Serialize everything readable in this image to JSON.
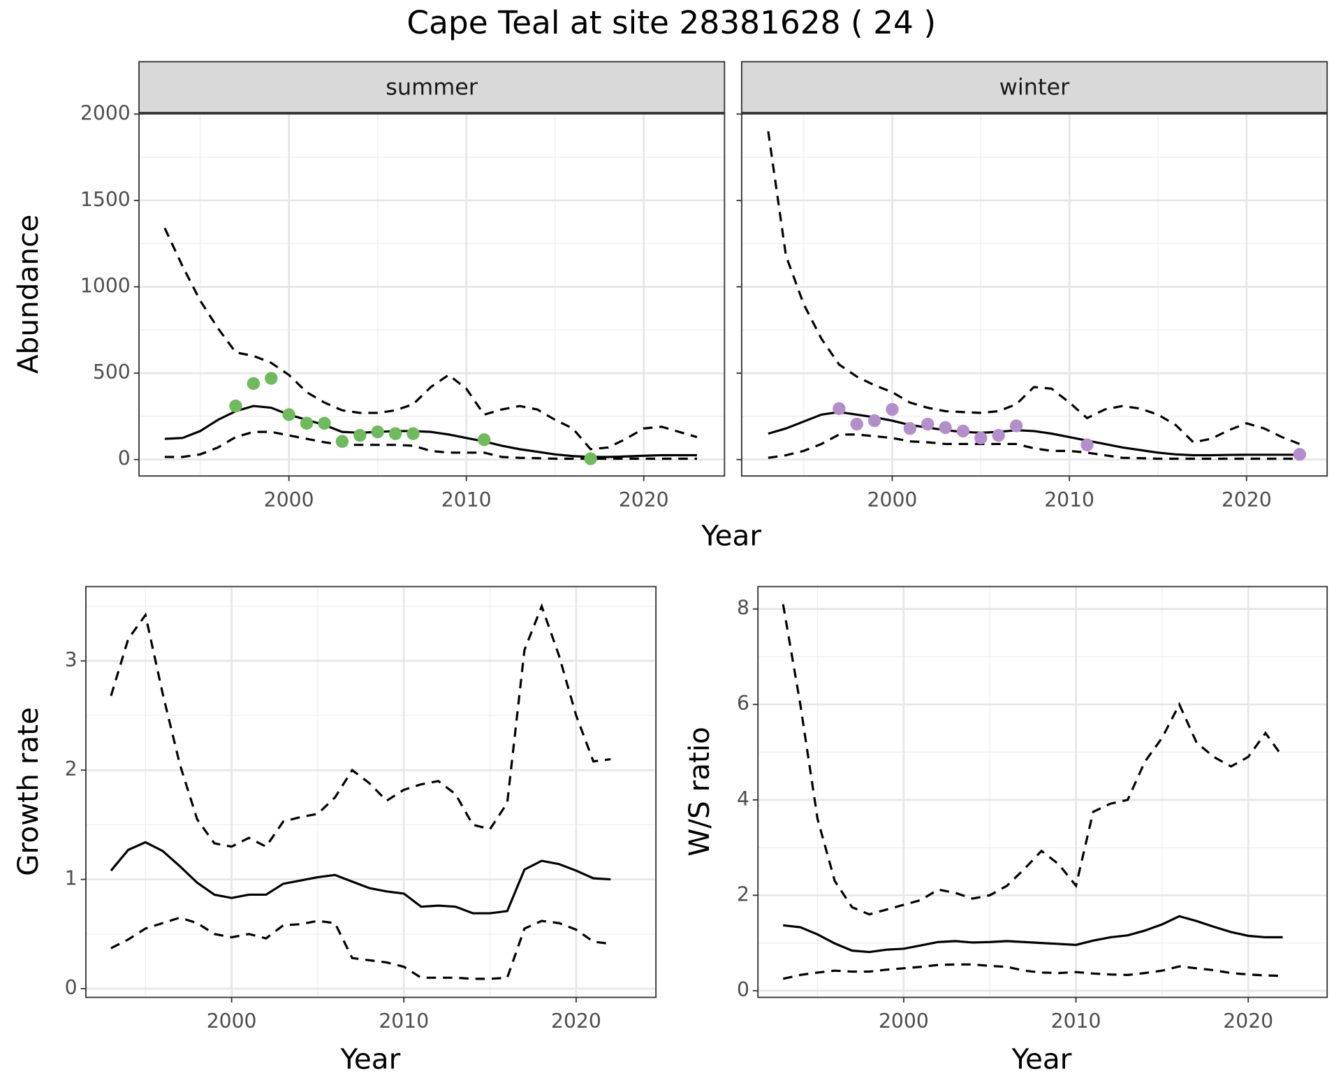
{
  "title": "Cape Teal at site 28381628 ( 24 )",
  "chart_data": [
    {
      "type": "line",
      "panel_label": "summer",
      "ylabel": "Abundance",
      "xlabel": "Year",
      "x": [
        1993,
        1994,
        1995,
        1996,
        1997,
        1998,
        1999,
        2000,
        2001,
        2002,
        2003,
        2004,
        2005,
        2006,
        2007,
        2008,
        2009,
        2010,
        2011,
        2012,
        2013,
        2014,
        2015,
        2016,
        2017,
        2018,
        2019,
        2020,
        2021,
        2022,
        2023
      ],
      "xlim": [
        1991.55,
        2024.55
      ],
      "xticks": [
        2000,
        2010,
        2020
      ],
      "ylim": [
        -95,
        2005
      ],
      "yticks": [
        0,
        500,
        1000,
        1500,
        2000
      ],
      "show_ytick_labels": true,
      "grid": true,
      "series": [
        {
          "color": "#000000",
          "linestyle": "solid",
          "values": [
            120,
            125,
            165,
            230,
            280,
            310,
            300,
            260,
            230,
            200,
            160,
            155,
            160,
            165,
            165,
            160,
            145,
            125,
            105,
            80,
            60,
            45,
            30,
            20,
            15,
            15,
            18,
            22,
            25,
            25,
            25
          ]
        },
        {
          "color": "#000000",
          "linestyle": "dashed",
          "values": [
            1340,
            1120,
            920,
            760,
            620,
            600,
            560,
            490,
            390,
            330,
            285,
            270,
            270,
            285,
            320,
            420,
            490,
            410,
            260,
            290,
            310,
            290,
            230,
            180,
            60,
            70,
            120,
            180,
            190,
            160,
            130
          ]
        },
        {
          "color": "#000000",
          "linestyle": "dashed",
          "values": [
            15,
            15,
            30,
            70,
            130,
            160,
            160,
            140,
            120,
            100,
            85,
            85,
            85,
            85,
            80,
            50,
            40,
            40,
            40,
            15,
            10,
            8,
            5,
            5,
            5,
            5,
            5,
            5,
            5,
            5,
            5
          ]
        }
      ],
      "points": {
        "color": "#6dbb5b",
        "x": [
          1997,
          1998,
          1999,
          2000,
          2001,
          2002,
          2003,
          2004,
          2005,
          2006,
          2007,
          2011,
          2017
        ],
        "values": [
          310,
          440,
          470,
          260,
          210,
          210,
          105,
          140,
          160,
          150,
          150,
          115,
          5
        ]
      }
    },
    {
      "type": "line",
      "panel_label": "winter",
      "x": [
        1993,
        1994,
        1995,
        1996,
        1997,
        1998,
        1999,
        2000,
        2001,
        2002,
        2003,
        2004,
        2005,
        2006,
        2007,
        2008,
        2009,
        2010,
        2011,
        2012,
        2013,
        2014,
        2015,
        2016,
        2017,
        2018,
        2019,
        2020,
        2021,
        2022,
        2023
      ],
      "xlim": [
        1991.5,
        2024.55
      ],
      "xticks": [
        2000,
        2010,
        2020
      ],
      "ylim": [
        -95,
        2005
      ],
      "yticks": [
        0,
        500,
        1000,
        1500,
        2000
      ],
      "show_ytick_labels": false,
      "grid": true,
      "series": [
        {
          "color": "#000000",
          "linestyle": "solid",
          "values": [
            150,
            180,
            220,
            260,
            275,
            260,
            245,
            225,
            200,
            185,
            170,
            160,
            155,
            160,
            170,
            165,
            150,
            130,
            110,
            90,
            70,
            55,
            40,
            30,
            25,
            25,
            27,
            28,
            28,
            28,
            28
          ]
        },
        {
          "color": "#000000",
          "linestyle": "dashed",
          "values": [
            1900,
            1180,
            900,
            700,
            550,
            480,
            430,
            390,
            330,
            300,
            280,
            275,
            270,
            280,
            320,
            420,
            410,
            330,
            240,
            290,
            310,
            295,
            260,
            200,
            100,
            120,
            170,
            210,
            180,
            130,
            90
          ]
        },
        {
          "color": "#000000",
          "linestyle": "dashed",
          "values": [
            10,
            25,
            50,
            90,
            145,
            145,
            135,
            125,
            105,
            100,
            90,
            90,
            90,
            90,
            90,
            65,
            50,
            50,
            40,
            25,
            10,
            8,
            5,
            5,
            5,
            5,
            5,
            5,
            5,
            5,
            5
          ]
        }
      ],
      "points": {
        "color": "#b48dcb",
        "x": [
          1997,
          1998,
          1999,
          2000,
          2001,
          2002,
          2003,
          2004,
          2005,
          2006,
          2007,
          2011,
          2023
        ],
        "values": [
          295,
          205,
          225,
          290,
          180,
          205,
          185,
          165,
          125,
          140,
          195,
          85,
          30
        ]
      }
    },
    {
      "type": "line",
      "ylabel": "Growth rate",
      "xlabel": "Year",
      "x": [
        1993,
        1994,
        1995,
        1996,
        1997,
        1998,
        1999,
        2000,
        2001,
        2002,
        2003,
        2004,
        2005,
        2006,
        2007,
        2008,
        2009,
        2010,
        2011,
        2012,
        2013,
        2014,
        2015,
        2016,
        2017,
        2018,
        2019,
        2020,
        2021,
        2022
      ],
      "xlim": [
        1991.54,
        2024.63
      ],
      "xticks": [
        2000,
        2010,
        2020
      ],
      "ylim": [
        -0.08,
        3.68
      ],
      "yticks": [
        0,
        1,
        2,
        3
      ],
      "show_ytick_labels": true,
      "grid": true,
      "series": [
        {
          "color": "#000000",
          "linestyle": "solid",
          "values": [
            1.08,
            1.27,
            1.34,
            1.26,
            1.12,
            0.97,
            0.86,
            0.83,
            0.86,
            0.86,
            0.96,
            0.99,
            1.02,
            1.04,
            0.98,
            0.92,
            0.89,
            0.87,
            0.75,
            0.76,
            0.75,
            0.69,
            0.69,
            0.71,
            1.09,
            1.17,
            1.14,
            1.08,
            1.01,
            1.0
          ]
        },
        {
          "color": "#000000",
          "linestyle": "dashed",
          "values": [
            2.68,
            3.2,
            3.42,
            2.7,
            2.05,
            1.55,
            1.33,
            1.3,
            1.38,
            1.3,
            1.53,
            1.57,
            1.6,
            1.75,
            2.0,
            1.88,
            1.72,
            1.82,
            1.87,
            1.9,
            1.78,
            1.5,
            1.46,
            1.7,
            3.1,
            3.5,
            3.05,
            2.5,
            2.08,
            2.1
          ]
        },
        {
          "color": "#000000",
          "linestyle": "dashed",
          "values": [
            0.37,
            0.45,
            0.55,
            0.6,
            0.65,
            0.6,
            0.5,
            0.47,
            0.5,
            0.46,
            0.58,
            0.59,
            0.62,
            0.6,
            0.28,
            0.26,
            0.24,
            0.2,
            0.1,
            0.1,
            0.1,
            0.09,
            0.09,
            0.1,
            0.55,
            0.62,
            0.6,
            0.54,
            0.43,
            0.41
          ]
        }
      ]
    },
    {
      "type": "line",
      "ylabel": "W/S ratio",
      "xlabel": "Year",
      "x": [
        1993,
        1994,
        1995,
        1996,
        1997,
        1998,
        1999,
        2000,
        2001,
        2002,
        2003,
        2004,
        2005,
        2006,
        2007,
        2008,
        2009,
        2010,
        2011,
        2012,
        2013,
        2014,
        2015,
        2016,
        2017,
        2018,
        2019,
        2020,
        2021,
        2022
      ],
      "xlim": [
        1991.54,
        2024.58
      ],
      "xticks": [
        2000,
        2010,
        2020
      ],
      "ylim": [
        -0.14,
        8.47
      ],
      "yticks": [
        0,
        2,
        4,
        6,
        8
      ],
      "show_ytick_labels": true,
      "grid": true,
      "series": [
        {
          "color": "#000000",
          "linestyle": "solid",
          "values": [
            1.37,
            1.33,
            1.18,
            0.99,
            0.84,
            0.81,
            0.86,
            0.88,
            0.95,
            1.02,
            1.04,
            1.01,
            1.02,
            1.04,
            1.02,
            1.0,
            0.98,
            0.96,
            1.05,
            1.12,
            1.16,
            1.26,
            1.39,
            1.56,
            1.46,
            1.34,
            1.23,
            1.15,
            1.12,
            1.12
          ]
        },
        {
          "color": "#000000",
          "linestyle": "dashed",
          "values": [
            8.1,
            6.0,
            3.6,
            2.3,
            1.75,
            1.6,
            1.7,
            1.8,
            1.9,
            2.12,
            2.05,
            1.93,
            2.0,
            2.2,
            2.55,
            2.93,
            2.65,
            2.2,
            3.75,
            3.92,
            4.0,
            4.8,
            5.3,
            6.0,
            5.2,
            4.9,
            4.7,
            4.9,
            5.4,
            4.9
          ]
        },
        {
          "color": "#000000",
          "linestyle": "dashed",
          "values": [
            0.25,
            0.33,
            0.38,
            0.42,
            0.4,
            0.4,
            0.44,
            0.47,
            0.5,
            0.54,
            0.55,
            0.55,
            0.52,
            0.5,
            0.42,
            0.38,
            0.37,
            0.39,
            0.36,
            0.34,
            0.33,
            0.37,
            0.42,
            0.51,
            0.47,
            0.43,
            0.37,
            0.34,
            0.32,
            0.31
          ]
        }
      ]
    }
  ]
}
